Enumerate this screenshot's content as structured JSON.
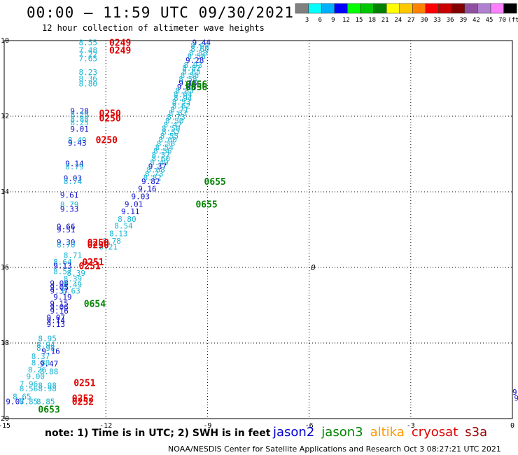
{
  "chart_data": {
    "type": "scatter",
    "title": "00:00 — 11:59 UTC 09/30/2021",
    "subtitle": "12 hour collection of altimeter wave heights",
    "xlim": [
      -15,
      0
    ],
    "ylim": [
      -20,
      -10
    ],
    "x_ticks": [
      "-15",
      "-12",
      "-9",
      "-6",
      "-3",
      "0"
    ],
    "y_ticks": [
      "-10",
      "-12",
      "-14",
      "-16",
      "-18",
      "-20"
    ],
    "colorbar": {
      "labels": [
        "3",
        "6",
        "9",
        "12",
        "15",
        "18",
        "21",
        "24",
        "27",
        "30",
        "33",
        "36",
        "39",
        "42",
        "45",
        "70",
        "(ft)"
      ],
      "colors": [
        "#808080",
        "#00ffff",
        "#00b0ff",
        "#0000ff",
        "#00ff00",
        "#00c800",
        "#008200",
        "#ffff00",
        "#ffc800",
        "#ff8200",
        "#ff0000",
        "#c80000",
        "#820000",
        "#9050a0",
        "#b080d0",
        "#ff80ff",
        "#000000"
      ]
    },
    "swh_labels": [
      {
        "x": -12.8,
        "y": -10.05,
        "text": "8.55",
        "color": "#17b5d4"
      },
      {
        "x": -12.8,
        "y": -10.25,
        "text": "7.48",
        "color": "#17b5d4"
      },
      {
        "x": -12.8,
        "y": -10.36,
        "text": "7.22",
        "color": "#17b5d4"
      },
      {
        "x": -12.8,
        "y": -10.47,
        "text": "7.65",
        "color": "#17b5d4"
      },
      {
        "x": -12.8,
        "y": -10.83,
        "text": "8.23",
        "color": "#17b5d4"
      },
      {
        "x": -12.8,
        "y": -11.0,
        "text": "8.36",
        "color": "#17b5d4"
      },
      {
        "x": -12.8,
        "y": -11.14,
        "text": "8.80",
        "color": "#17b5d4"
      },
      {
        "x": -13.05,
        "y": -11.86,
        "text": "9.28",
        "color": "#1010d0"
      },
      {
        "x": -13.05,
        "y": -11.95,
        "text": "8.29",
        "color": "#17b5d4"
      },
      {
        "x": -13.05,
        "y": -12.07,
        "text": "8.88",
        "color": "#17b5d4"
      },
      {
        "x": -13.05,
        "y": -12.17,
        "text": "8.25",
        "color": "#17b5d4"
      },
      {
        "x": -13.05,
        "y": -12.33,
        "text": "9.01",
        "color": "#1010d0"
      },
      {
        "x": -13.12,
        "y": -12.63,
        "text": "8.49",
        "color": "#17b5d4"
      },
      {
        "x": -13.12,
        "y": -12.7,
        "text": "9.43",
        "color": "#1010d0"
      },
      {
        "x": -13.2,
        "y": -13.25,
        "text": "9.14",
        "color": "#1010d0"
      },
      {
        "x": -13.2,
        "y": -13.33,
        "text": "8.79",
        "color": "#17b5d4"
      },
      {
        "x": -13.25,
        "y": -13.64,
        "text": "9.03",
        "color": "#1010d0"
      },
      {
        "x": -13.25,
        "y": -13.72,
        "text": "8.74",
        "color": "#17b5d4"
      },
      {
        "x": -13.35,
        "y": -14.08,
        "text": "9.61",
        "color": "#1010d0"
      },
      {
        "x": -13.35,
        "y": -14.33,
        "text": "8.79",
        "color": "#17b5d4"
      },
      {
        "x": -13.35,
        "y": -14.45,
        "text": "9.33",
        "color": "#1010d0"
      },
      {
        "x": -13.45,
        "y": -14.92,
        "text": "9.66",
        "color": "#1010d0"
      },
      {
        "x": -13.45,
        "y": -15.0,
        "text": "9.51",
        "color": "#1010d0"
      },
      {
        "x": -13.45,
        "y": -15.33,
        "text": "9.30",
        "color": "#1010d0"
      },
      {
        "x": -13.45,
        "y": -15.4,
        "text": "8.70",
        "color": "#17b5d4"
      },
      {
        "x": -13.25,
        "y": -15.68,
        "text": "8.71",
        "color": "#17b5d4"
      },
      {
        "x": -13.55,
        "y": -15.85,
        "text": "8.64",
        "color": "#17b5d4"
      },
      {
        "x": -13.55,
        "y": -15.95,
        "text": "9.13",
        "color": "#1010d0"
      },
      {
        "x": -13.55,
        "y": -16.1,
        "text": "8.57",
        "color": "#17b5d4"
      },
      {
        "x": -13.15,
        "y": -16.15,
        "text": "8.39",
        "color": "#17b5d4"
      },
      {
        "x": -13.25,
        "y": -16.3,
        "text": "8.39",
        "color": "#17b5d4"
      },
      {
        "x": -13.65,
        "y": -16.42,
        "text": "9.08",
        "color": "#1010d0"
      },
      {
        "x": -13.25,
        "y": -16.45,
        "text": "8.49",
        "color": "#17b5d4"
      },
      {
        "x": -13.65,
        "y": -16.52,
        "text": "9.05",
        "color": "#1010d0"
      },
      {
        "x": -13.65,
        "y": -16.62,
        "text": "9.37",
        "color": "#1010d0"
      },
      {
        "x": -13.3,
        "y": -16.62,
        "text": "8.63",
        "color": "#17b5d4"
      },
      {
        "x": -13.55,
        "y": -16.78,
        "text": "9.19",
        "color": "#1010d0"
      },
      {
        "x": -13.65,
        "y": -16.95,
        "text": "9.15",
        "color": "#1010d0"
      },
      {
        "x": -13.65,
        "y": -17.05,
        "text": "9.06",
        "color": "#1010d0"
      },
      {
        "x": -13.65,
        "y": -17.15,
        "text": "9.16",
        "color": "#1010d0"
      },
      {
        "x": -13.75,
        "y": -17.32,
        "text": "9.07",
        "color": "#1010d0"
      },
      {
        "x": -13.75,
        "y": -17.4,
        "text": "9.14",
        "color": "#1010d0"
      },
      {
        "x": -13.75,
        "y": -17.5,
        "text": "9.13",
        "color": "#1010d0"
      },
      {
        "x": -14.0,
        "y": -17.88,
        "text": "8.95",
        "color": "#17b5d4"
      },
      {
        "x": -14.05,
        "y": -18.05,
        "text": "8.94",
        "color": "#17b5d4"
      },
      {
        "x": -14.05,
        "y": -18.13,
        "text": "8.98",
        "color": "#17b5d4"
      },
      {
        "x": -13.9,
        "y": -18.21,
        "text": "9.16",
        "color": "#1010d0"
      },
      {
        "x": -14.2,
        "y": -18.35,
        "text": "8.37",
        "color": "#17b5d4"
      },
      {
        "x": -14.2,
        "y": -18.52,
        "text": "8.80",
        "color": "#17b5d4"
      },
      {
        "x": -13.95,
        "y": -18.55,
        "text": "9.47",
        "color": "#1010d0"
      },
      {
        "x": -14.3,
        "y": -18.7,
        "text": "8.26",
        "color": "#17b5d4"
      },
      {
        "x": -13.95,
        "y": -18.75,
        "text": "8.88",
        "color": "#17b5d4"
      },
      {
        "x": -14.35,
        "y": -18.88,
        "text": "9.00",
        "color": "#17b5d4"
      },
      {
        "x": -14.55,
        "y": -19.08,
        "text": "7.96",
        "color": "#17b5d4"
      },
      {
        "x": -14.0,
        "y": -19.12,
        "text": "8.98",
        "color": "#17b5d4"
      },
      {
        "x": -14.55,
        "y": -19.2,
        "text": "8.56",
        "color": "#17b5d4"
      },
      {
        "x": -14.0,
        "y": -19.2,
        "text": "8.98",
        "color": "#17b5d4"
      },
      {
        "x": -14.75,
        "y": -19.42,
        "text": "8.65",
        "color": "#17b5d4"
      },
      {
        "x": -14.95,
        "y": -19.55,
        "text": "9.07",
        "color": "#1010d0"
      },
      {
        "x": -14.55,
        "y": -19.55,
        "text": "8.85",
        "color": "#17b5d4"
      },
      {
        "x": -14.05,
        "y": -19.55,
        "text": "8.85",
        "color": "#17b5d4"
      },
      {
        "x": -9.45,
        "y": -10.05,
        "text": "9.44",
        "color": "#1010d0"
      },
      {
        "x": -9.5,
        "y": -10.13,
        "text": "8.68",
        "color": "#17b5d4"
      },
      {
        "x": -9.5,
        "y": -10.22,
        "text": "8.60",
        "color": "#17b5d4"
      },
      {
        "x": -9.55,
        "y": -10.32,
        "text": "8.58",
        "color": "#17b5d4"
      },
      {
        "x": -9.6,
        "y": -10.42,
        "text": "8.56",
        "color": "#17b5d4"
      },
      {
        "x": -9.65,
        "y": -10.52,
        "text": "9.28",
        "color": "#1010d0"
      },
      {
        "x": -9.7,
        "y": -10.65,
        "text": "8.93",
        "color": "#17b5d4"
      },
      {
        "x": -9.75,
        "y": -10.72,
        "text": "8.82",
        "color": "#17b5d4"
      },
      {
        "x": -9.75,
        "y": -10.82,
        "text": "8.65",
        "color": "#17b5d4"
      },
      {
        "x": -9.8,
        "y": -10.92,
        "text": "8.56",
        "color": "#17b5d4"
      },
      {
        "x": -9.85,
        "y": -11.02,
        "text": "8.58",
        "color": "#17b5d4"
      },
      {
        "x": -9.85,
        "y": -11.12,
        "text": "9.15",
        "color": "#1010d0"
      },
      {
        "x": -9.9,
        "y": -11.22,
        "text": "9.45",
        "color": "#1010d0"
      },
      {
        "x": -9.95,
        "y": -11.32,
        "text": "8.85",
        "color": "#17b5d4"
      },
      {
        "x": -10.0,
        "y": -11.42,
        "text": "8.64",
        "color": "#17b5d4"
      },
      {
        "x": -10.0,
        "y": -11.52,
        "text": "8.94",
        "color": "#17b5d4"
      },
      {
        "x": -10.05,
        "y": -11.62,
        "text": "8.53",
        "color": "#17b5d4"
      },
      {
        "x": -10.05,
        "y": -11.72,
        "text": "8.62",
        "color": "#17b5d4"
      },
      {
        "x": -10.1,
        "y": -11.82,
        "text": "8.71",
        "color": "#17b5d4"
      },
      {
        "x": -10.15,
        "y": -11.92,
        "text": "8.63",
        "color": "#17b5d4"
      },
      {
        "x": -10.2,
        "y": -12.02,
        "text": "8.73",
        "color": "#17b5d4"
      },
      {
        "x": -10.25,
        "y": -12.12,
        "text": "8.50",
        "color": "#17b5d4"
      },
      {
        "x": -10.3,
        "y": -12.22,
        "text": "8.47",
        "color": "#17b5d4"
      },
      {
        "x": -10.35,
        "y": -12.32,
        "text": "8.50",
        "color": "#17b5d4"
      },
      {
        "x": -10.35,
        "y": -12.42,
        "text": "8.57",
        "color": "#17b5d4"
      },
      {
        "x": -10.4,
        "y": -12.52,
        "text": "8.55",
        "color": "#17b5d4"
      },
      {
        "x": -10.45,
        "y": -12.62,
        "text": "8.60",
        "color": "#17b5d4"
      },
      {
        "x": -10.5,
        "y": -12.72,
        "text": "8.56",
        "color": "#17b5d4"
      },
      {
        "x": -10.55,
        "y": -12.82,
        "text": "8.54",
        "color": "#17b5d4"
      },
      {
        "x": -10.6,
        "y": -12.92,
        "text": "8.56",
        "color": "#17b5d4"
      },
      {
        "x": -10.65,
        "y": -13.02,
        "text": "8.57",
        "color": "#17b5d4"
      },
      {
        "x": -10.65,
        "y": -13.12,
        "text": "8.60",
        "color": "#17b5d4"
      },
      {
        "x": -10.7,
        "y": -13.22,
        "text": "8.49",
        "color": "#17b5d4"
      },
      {
        "x": -10.75,
        "y": -13.32,
        "text": "9.37",
        "color": "#1010d0"
      },
      {
        "x": -10.8,
        "y": -13.42,
        "text": "8.68",
        "color": "#17b5d4"
      },
      {
        "x": -10.85,
        "y": -13.52,
        "text": "8.73",
        "color": "#17b5d4"
      },
      {
        "x": -10.9,
        "y": -13.62,
        "text": "8.82",
        "color": "#17b5d4"
      },
      {
        "x": -10.95,
        "y": -13.72,
        "text": "9.82",
        "color": "#1010d0"
      },
      {
        "x": -11.05,
        "y": -13.92,
        "text": "9.16",
        "color": "#1010d0"
      },
      {
        "x": -11.25,
        "y": -14.12,
        "text": "9.03",
        "color": "#1010d0"
      },
      {
        "x": -11.45,
        "y": -14.32,
        "text": "9.01",
        "color": "#1010d0"
      },
      {
        "x": -11.55,
        "y": -14.52,
        "text": "9.11",
        "color": "#1010d0"
      },
      {
        "x": -11.65,
        "y": -14.72,
        "text": "8.80",
        "color": "#17b5d4"
      },
      {
        "x": -11.75,
        "y": -14.9,
        "text": "8.54",
        "color": "#17b5d4"
      },
      {
        "x": -11.9,
        "y": -15.1,
        "text": "8.13",
        "color": "#17b5d4"
      },
      {
        "x": -12.1,
        "y": -15.3,
        "text": "8.78",
        "color": "#17b5d4"
      },
      {
        "x": -12.2,
        "y": -15.45,
        "text": "8.21",
        "color": "#17b5d4"
      },
      {
        "x": 0.15,
        "y": -19.05,
        "text": "9.",
        "color": "#17b5d4"
      },
      {
        "x": 0.0,
        "y": -19.3,
        "text": "9.",
        "color": "#1010d0"
      },
      {
        "x": 0.05,
        "y": -19.45,
        "text": "9.",
        "color": "#1010d0"
      }
    ],
    "time_labels": [
      {
        "x": -11.9,
        "y": -10.05,
        "text": "0249",
        "color": "#e00000"
      },
      {
        "x": -11.9,
        "y": -10.25,
        "text": "0249",
        "color": "#e00000"
      },
      {
        "x": -12.2,
        "y": -11.92,
        "text": "0250",
        "color": "#e00000"
      },
      {
        "x": -12.2,
        "y": -12.05,
        "text": "0250",
        "color": "#e00000"
      },
      {
        "x": -12.3,
        "y": -12.62,
        "text": "0250",
        "color": "#e00000"
      },
      {
        "x": -12.55,
        "y": -15.33,
        "text": "0250",
        "color": "#e00000"
      },
      {
        "x": -12.55,
        "y": -15.4,
        "text": "0250",
        "color": "#e00000"
      },
      {
        "x": -12.7,
        "y": -15.85,
        "text": "0251",
        "color": "#e00000"
      },
      {
        "x": -12.8,
        "y": -15.95,
        "text": "0251",
        "color": "#e00000"
      },
      {
        "x": -12.95,
        "y": -19.05,
        "text": "0251",
        "color": "#e00000"
      },
      {
        "x": -13.0,
        "y": -19.45,
        "text": "0252",
        "color": "#e00000"
      },
      {
        "x": -13.0,
        "y": -19.55,
        "text": "0252",
        "color": "#e00000"
      },
      {
        "x": -9.65,
        "y": -11.15,
        "text": "0656",
        "color": "#008200"
      },
      {
        "x": -9.65,
        "y": -11.22,
        "text": "0656",
        "color": "#008200"
      },
      {
        "x": -9.1,
        "y": -13.72,
        "text": "0655",
        "color": "#008200"
      },
      {
        "x": -9.35,
        "y": -14.32,
        "text": "0655",
        "color": "#008200"
      },
      {
        "x": -12.65,
        "y": -16.95,
        "text": "0654",
        "color": "#008200"
      },
      {
        "x": -14.0,
        "y": -19.75,
        "text": "0653",
        "color": "#008200"
      }
    ],
    "marker_label": {
      "x": -5.95,
      "y": -16.0,
      "text": "0"
    },
    "note": "note: 1) Time is in UTC; 2) SWH is in feet",
    "legend": [
      {
        "name": "jason2",
        "color": "#0000cc"
      },
      {
        "name": "jason3",
        "color": "#008200"
      },
      {
        "name": "altika",
        "color": "#ff9900"
      },
      {
        "name": "cryosat",
        "color": "#e00000"
      },
      {
        "name": "s3a",
        "color": "#990000"
      }
    ],
    "credit": "NOAA/NESDIS Center for Satellite Applications and Research    Oct  3 08:27:21 UTC 2021",
    "grid": true
  }
}
